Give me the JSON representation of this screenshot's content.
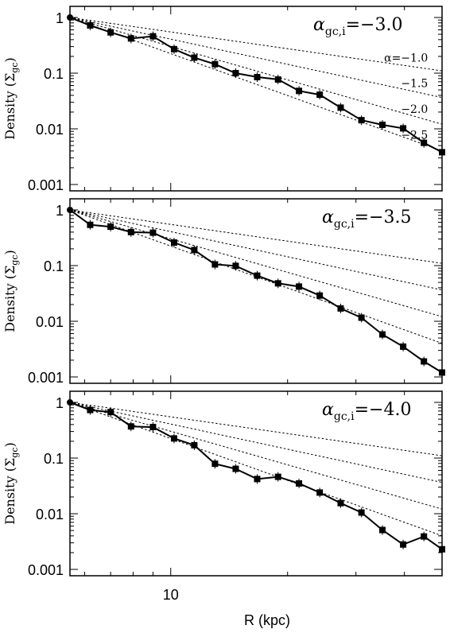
{
  "figure": {
    "xlabel": "R (kpc)",
    "x_ticklabels": [
      {
        "value": 10,
        "label": "10"
      }
    ]
  },
  "chart_data": [
    {
      "type": "line",
      "panel_label": {
        "alpha": "α",
        "sub": "gc,i",
        "value": "=−3.0"
      },
      "ylabel": {
        "main": "Density (Σ",
        "sub": "gc",
        "close": ")"
      },
      "yscale": "log",
      "ylim": [
        0.001,
        1
      ],
      "xlim": [
        5.5,
        50
      ],
      "yticks": [
        {
          "value": 1,
          "label": "1"
        },
        {
          "value": 0.1,
          "label": "0.1"
        },
        {
          "value": 0.01,
          "label": "0.01"
        },
        {
          "value": 0.001,
          "label": "0.001"
        }
      ],
      "series": [
        {
          "x": [
            5.5,
            6.2,
            7.0,
            7.9,
            9.0,
            10.2,
            11.5,
            13.0,
            14.7,
            16.7,
            18.9,
            21.4,
            24.2,
            27.4,
            31.0,
            35.1,
            39.7,
            44.9,
            50.0
          ],
          "y": [
            1.0,
            0.72,
            0.54,
            0.42,
            0.46,
            0.27,
            0.19,
            0.145,
            0.1,
            0.085,
            0.077,
            0.048,
            0.041,
            0.024,
            0.0143,
            0.0118,
            0.0102,
            0.0056,
            0.0038
          ]
        }
      ],
      "power_laws": [
        {
          "slope": -1.0,
          "label": "α=−1.0"
        },
        {
          "slope": -1.5,
          "label": "−1.5"
        },
        {
          "slope": -2.0,
          "label": "−2.0"
        },
        {
          "slope": -2.5,
          "label": "−2.5"
        }
      ]
    },
    {
      "type": "line",
      "panel_label": {
        "alpha": "α",
        "sub": "gc,i",
        "value": "=−3.5"
      },
      "ylabel": {
        "main": "Density (Σ",
        "sub": "gc",
        "close": ")"
      },
      "yscale": "log",
      "ylim": [
        0.001,
        1
      ],
      "xlim": [
        5.5,
        50
      ],
      "yticks": [
        {
          "value": 1,
          "label": "1"
        },
        {
          "value": 0.1,
          "label": "0.1"
        },
        {
          "value": 0.01,
          "label": "0.01"
        },
        {
          "value": 0.001,
          "label": "0.001"
        }
      ],
      "series": [
        {
          "x": [
            5.5,
            6.2,
            7.0,
            7.9,
            9.0,
            10.2,
            11.5,
            13.0,
            14.7,
            16.7,
            18.9,
            21.4,
            24.2,
            27.4,
            31.0,
            35.1,
            39.7,
            44.9,
            50.0
          ],
          "y": [
            1.0,
            0.54,
            0.5,
            0.4,
            0.39,
            0.26,
            0.19,
            0.105,
            0.099,
            0.066,
            0.048,
            0.042,
            0.029,
            0.017,
            0.0116,
            0.0058,
            0.0035,
            0.0019,
            0.0012
          ]
        }
      ],
      "power_laws": [
        {
          "slope": -1.0,
          "label": ""
        },
        {
          "slope": -1.5,
          "label": ""
        },
        {
          "slope": -2.0,
          "label": ""
        },
        {
          "slope": -2.5,
          "label": ""
        }
      ]
    },
    {
      "type": "line",
      "panel_label": {
        "alpha": "α",
        "sub": "gc,i",
        "value": "=−4.0"
      },
      "ylabel": {
        "main": "Density (Σ",
        "sub": "gc",
        "close": ")"
      },
      "yscale": "log",
      "ylim": [
        0.001,
        1
      ],
      "xlim": [
        5.5,
        50
      ],
      "yticks": [
        {
          "value": 1,
          "label": "1"
        },
        {
          "value": 0.1,
          "label": "0.1"
        },
        {
          "value": 0.01,
          "label": "0.01"
        },
        {
          "value": 0.001,
          "label": "0.001"
        }
      ],
      "series": [
        {
          "x": [
            5.5,
            6.2,
            7.0,
            7.9,
            9.0,
            10.2,
            11.5,
            13.0,
            14.7,
            16.7,
            18.9,
            21.4,
            24.2,
            27.4,
            31.0,
            35.1,
            39.7,
            44.9,
            50.0
          ],
          "y": [
            1.0,
            0.73,
            0.67,
            0.37,
            0.36,
            0.225,
            0.17,
            0.079,
            0.064,
            0.042,
            0.046,
            0.035,
            0.024,
            0.0155,
            0.0105,
            0.0051,
            0.0028,
            0.0039,
            0.0023
          ]
        }
      ],
      "power_laws": [
        {
          "slope": -1.0,
          "label": ""
        },
        {
          "slope": -1.5,
          "label": ""
        },
        {
          "slope": -2.0,
          "label": ""
        },
        {
          "slope": -2.5,
          "label": ""
        }
      ]
    }
  ]
}
